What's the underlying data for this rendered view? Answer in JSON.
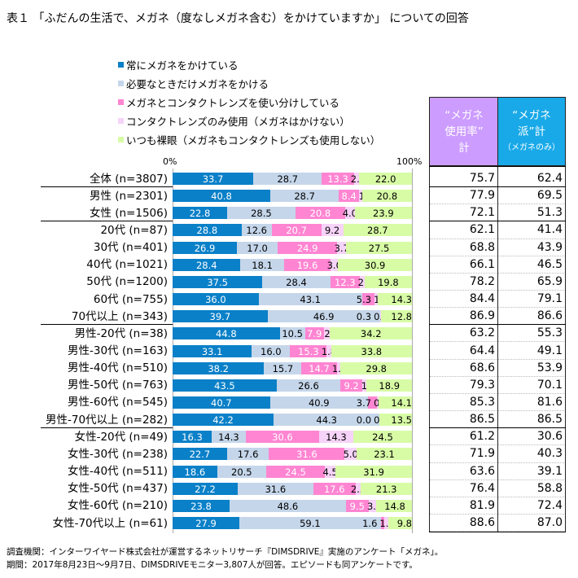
{
  "title": "表１ 「ふだんの生活で、メガネ（度なしメガネ含む）をかけていますか」 についての回答",
  "chart_data": {
    "type": "bar",
    "stacked": true,
    "orientation": "horizontal",
    "xlim": [
      0,
      100
    ],
    "axis_labels": {
      "min": "0%",
      "max": "100%"
    },
    "legend_placement": "top",
    "series": [
      {
        "name": "常にメガネをかけている",
        "color": "#0a80c8",
        "label_color": "#ffffff"
      },
      {
        "name": "必要なときだけメガネをかける",
        "color": "#c5d6ea",
        "label_color": "#000000"
      },
      {
        "name": "メガネとコンタクトレンズを使い分けしている",
        "color": "#ff85d2",
        "label_color": "#ffffff"
      },
      {
        "name": "コンタクトレンズのみ使用（メガネはかけない）",
        "color": "#f6d3f8",
        "label_color": "#000000"
      },
      {
        "name": "いつも裸眼（メガネもコンタクトレンズも使用しない）",
        "color": "#d8fca6",
        "label_color": "#000000"
      }
    ],
    "categories": [
      {
        "label": "全体 (n=3807)",
        "values": [
          33.7,
          28.7,
          13.3,
          2.3,
          22.0
        ],
        "usage_total": "75.7",
        "glasses_only": "62.4"
      },
      {
        "label": "男性 (n=2301)",
        "values": [
          40.8,
          28.7,
          8.4,
          1.3,
          20.8
        ],
        "usage_total": "77.9",
        "glasses_only": "69.5"
      },
      {
        "label": "女性 (n=1506)",
        "values": [
          22.8,
          28.5,
          20.8,
          4.0,
          23.9
        ],
        "usage_total": "72.1",
        "glasses_only": "51.3"
      },
      {
        "label": "20代 (n=87)",
        "values": [
          28.8,
          12.6,
          20.7,
          9.2,
          28.7
        ],
        "usage_total": "62.1",
        "glasses_only": "41.4"
      },
      {
        "label": "30代 (n=401)",
        "values": [
          26.9,
          17.0,
          24.9,
          3.7,
          27.5
        ],
        "usage_total": "68.8",
        "glasses_only": "43.9"
      },
      {
        "label": "40代 (n=1021)",
        "values": [
          28.4,
          18.1,
          19.6,
          3.0,
          30.9
        ],
        "usage_total": "66.1",
        "glasses_only": "46.5"
      },
      {
        "label": "50代 (n=1200)",
        "values": [
          37.5,
          28.4,
          12.3,
          2.0,
          19.8
        ],
        "usage_total": "78.2",
        "glasses_only": "65.9"
      },
      {
        "label": "60代 (n=755)",
        "values": [
          36.0,
          43.1,
          5.3,
          1.3,
          14.3
        ],
        "usage_total": "84.4",
        "glasses_only": "79.1"
      },
      {
        "label": "70代以上 (n=343)",
        "values": [
          39.7,
          46.9,
          0.3,
          0.3,
          12.8
        ],
        "usage_total": "86.9",
        "glasses_only": "86.6"
      },
      {
        "label": "男性-20代 (n=38)",
        "values": [
          44.8,
          10.5,
          7.9,
          2.6,
          34.2
        ],
        "usage_total": "63.2",
        "glasses_only": "55.3"
      },
      {
        "label": "男性-30代 (n=163)",
        "values": [
          33.1,
          16.0,
          15.3,
          1.8,
          33.8
        ],
        "usage_total": "64.4",
        "glasses_only": "49.1"
      },
      {
        "label": "男性-40代 (n=510)",
        "values": [
          38.2,
          15.7,
          14.7,
          1.6,
          29.8
        ],
        "usage_total": "68.6",
        "glasses_only": "53.9"
      },
      {
        "label": "男性-50代 (n=763)",
        "values": [
          43.5,
          26.6,
          9.2,
          1.8,
          18.9
        ],
        "usage_total": "79.3",
        "glasses_only": "70.1"
      },
      {
        "label": "男性-60代 (n=545)",
        "values": [
          40.7,
          40.9,
          3.7,
          0.6,
          14.1
        ],
        "usage_total": "85.3",
        "glasses_only": "81.6"
      },
      {
        "label": "男性-70代以上 (n=282)",
        "values": [
          42.2,
          44.3,
          0.0,
          0.0,
          13.5
        ],
        "usage_total": "86.5",
        "glasses_only": "86.5"
      },
      {
        "label": "女性-20代 (n=49)",
        "values": [
          16.3,
          14.3,
          30.6,
          14.3,
          24.5
        ],
        "usage_total": "61.2",
        "glasses_only": "30.6"
      },
      {
        "label": "女性-30代 (n=238)",
        "values": [
          22.7,
          17.6,
          31.6,
          5.0,
          23.1
        ],
        "usage_total": "71.9",
        "glasses_only": "40.3"
      },
      {
        "label": "女性-40代 (n=511)",
        "values": [
          18.6,
          20.5,
          24.5,
          4.5,
          31.9
        ],
        "usage_total": "63.6",
        "glasses_only": "39.1"
      },
      {
        "label": "女性-50代 (n=437)",
        "values": [
          27.2,
          31.6,
          17.6,
          2.3,
          21.3
        ],
        "usage_total": "76.4",
        "glasses_only": "58.8"
      },
      {
        "label": "女性-60代 (n=210)",
        "values": [
          23.8,
          48.6,
          9.5,
          3.3,
          14.8
        ],
        "usage_total": "81.9",
        "glasses_only": "72.4"
      },
      {
        "label": "女性-70代以上 (n=61)",
        "values": [
          27.9,
          59.1,
          1.6,
          1.6,
          9.8
        ],
        "usage_total": "88.6",
        "glasses_only": "87.0"
      }
    ]
  },
  "table_headers": {
    "usage_total": {
      "lines": [
        "“メガネ",
        "使用率”",
        "計"
      ],
      "color": "#cc9cff"
    },
    "glasses_only": {
      "lines": [
        "“メガネ",
        "派”計"
      ],
      "sub": "（メガネのみ）",
      "color": "#19a9e8"
    }
  },
  "footer": [
    "調査機関：インターワイヤード株式会社が運営するネットリサーチ『DIMSDRIVE』実施のアンケート「メガネ」。",
    "期間：2017年8月23日～9月7日、DIMSDRIVEモニター3,807人が回答。エピソードも同アンケートです。"
  ]
}
